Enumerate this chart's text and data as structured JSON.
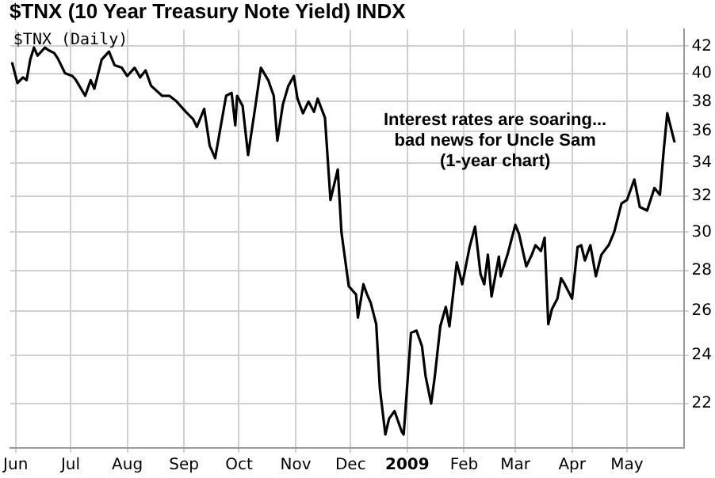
{
  "chart_data": {
    "type": "line",
    "title": "$TNX (10 Year Treasury Note Yield) INDX",
    "annotations": [
      "$TNX (Daily)",
      "Interest rates are soaring...\nbad news for Uncle Sam\n(1-year chart)"
    ],
    "x": [
      "2008-05-30",
      "2008-06-02",
      "2008-06-05",
      "2008-06-07",
      "2008-06-09",
      "2008-06-11",
      "2008-06-13",
      "2008-06-17",
      "2008-06-19",
      "2008-06-22",
      "2008-06-24",
      "2008-06-28",
      "2008-07-02",
      "2008-07-04",
      "2008-07-09",
      "2008-07-12",
      "2008-07-14",
      "2008-07-18",
      "2008-07-22",
      "2008-07-25",
      "2008-07-29",
      "2008-08-01",
      "2008-08-05",
      "2008-08-08",
      "2008-08-11",
      "2008-08-14",
      "2008-08-20",
      "2008-08-24",
      "2008-08-28",
      "2008-09-02",
      "2008-09-06",
      "2008-09-08",
      "2008-09-12",
      "2008-09-15",
      "2008-09-18",
      "2008-09-21",
      "2008-09-24",
      "2008-09-27",
      "2008-09-29",
      "2008-09-30",
      "2008-10-03",
      "2008-10-06",
      "2008-10-10",
      "2008-10-13",
      "2008-10-17",
      "2008-10-20",
      "2008-10-22",
      "2008-10-25",
      "2008-10-28",
      "2008-10-31",
      "2008-11-02",
      "2008-11-05",
      "2008-11-08",
      "2008-11-11",
      "2008-11-13",
      "2008-11-17",
      "2008-11-20",
      "2008-11-24",
      "2008-11-26",
      "2008-11-30",
      "2008-12-04",
      "2008-12-05",
      "2008-12-08",
      "2008-12-10",
      "2008-12-12",
      "2008-12-15",
      "2008-12-17",
      "2008-12-20",
      "2008-12-22",
      "2008-12-25",
      "2008-12-29",
      "2008-12-30",
      "2009-01-03",
      "2009-01-06",
      "2009-01-09",
      "2009-01-11",
      "2009-01-14",
      "2009-01-16",
      "2009-01-19",
      "2009-01-22",
      "2009-01-24",
      "2009-01-28",
      "2009-01-31",
      "2009-02-04",
      "2009-02-07",
      "2009-02-10",
      "2009-02-12",
      "2009-02-14",
      "2009-02-16",
      "2009-02-20",
      "2009-02-21",
      "2009-02-25",
      "2009-03-01",
      "2009-03-03",
      "2009-03-07",
      "2009-03-10",
      "2009-03-12",
      "2009-03-15",
      "2009-03-17",
      "2009-03-19",
      "2009-03-21",
      "2009-03-24",
      "2009-03-26",
      "2009-03-28",
      "2009-04-01",
      "2009-04-04",
      "2009-04-06",
      "2009-04-08",
      "2009-04-11",
      "2009-04-14",
      "2009-04-17",
      "2009-04-21",
      "2009-04-24",
      "2009-04-28",
      "2009-05-01",
      "2009-05-05",
      "2009-05-08",
      "2009-05-12",
      "2009-05-16",
      "2009-05-19",
      "2009-05-21",
      "2009-05-23",
      "2009-05-27"
    ],
    "series": [
      {
        "color": "#000000",
        "values": [
          40.8,
          39.3,
          39.7,
          39.5,
          41.0,
          41.9,
          41.3,
          41.9,
          41.7,
          41.5,
          41.1,
          40.0,
          39.8,
          39.5,
          38.4,
          39.5,
          38.9,
          41.0,
          41.6,
          40.6,
          40.4,
          39.8,
          40.4,
          39.7,
          40.2,
          39.1,
          38.4,
          38.4,
          38.0,
          37.3,
          36.8,
          36.3,
          37.5,
          35.1,
          34.3,
          36.3,
          38.4,
          38.6,
          36.4,
          38.4,
          37.7,
          34.5,
          37.7,
          40.4,
          39.5,
          38.4,
          35.4,
          37.8,
          39.1,
          39.8,
          38.2,
          37.2,
          38.0,
          37.3,
          38.2,
          36.9,
          31.8,
          33.6,
          30.0,
          27.2,
          26.8,
          25.7,
          27.3,
          26.8,
          26.4,
          25.4,
          22.6,
          20.8,
          21.4,
          21.7,
          20.9,
          20.8,
          25.0,
          25.1,
          24.4,
          23.1,
          22.0,
          23.1,
          25.3,
          26.2,
          25.3,
          28.4,
          27.3,
          29.2,
          30.3,
          27.8,
          27.3,
          28.8,
          26.7,
          28.7,
          27.7,
          28.9,
          30.4,
          29.9,
          28.2,
          28.8,
          29.3,
          29.0,
          29.7,
          25.4,
          26.1,
          26.6,
          27.6,
          27.3,
          26.6,
          29.2,
          29.3,
          28.5,
          29.3,
          27.7,
          28.8,
          29.3,
          30.0,
          31.6,
          31.8,
          33.0,
          31.4,
          31.2,
          32.5,
          32.1,
          34.7,
          37.2,
          35.3
        ]
      }
    ],
    "xlim": [
      "2008-05-29",
      "2009-06-01"
    ],
    "xticks": [
      {
        "value": "2008-06-01",
        "label": "Jun"
      },
      {
        "value": "2008-07-01",
        "label": "Jul"
      },
      {
        "value": "2008-08-01",
        "label": "Aug"
      },
      {
        "value": "2008-09-01",
        "label": "Sep"
      },
      {
        "value": "2008-10-01",
        "label": "Oct"
      },
      {
        "value": "2008-11-01",
        "label": "Nov"
      },
      {
        "value": "2008-12-01",
        "label": "Dec"
      },
      {
        "value": "2009-01-01",
        "label": "2009"
      },
      {
        "value": "2009-02-01",
        "label": "Feb"
      },
      {
        "value": "2009-03-01",
        "label": "Mar"
      },
      {
        "value": "2009-04-01",
        "label": "Apr"
      },
      {
        "value": "2009-05-01",
        "label": "May"
      }
    ],
    "ylim": [
      20.3,
      43.3
    ],
    "yticks": [
      22,
      24,
      26,
      28,
      30,
      32,
      34,
      36,
      38,
      40,
      42
    ],
    "log": true,
    "grid": true,
    "legend": false,
    "marker": "none",
    "line_style": "solid"
  }
}
